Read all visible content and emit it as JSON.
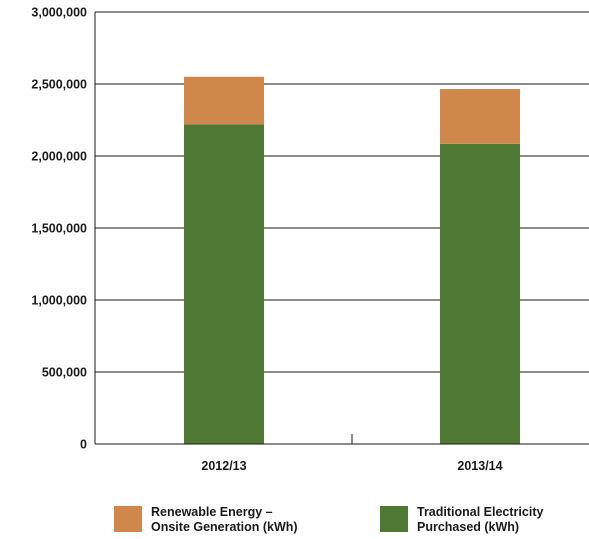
{
  "chart_data": {
    "type": "bar",
    "stacked": true,
    "categories": [
      "2012/13",
      "2013/14"
    ],
    "series": [
      {
        "name_lines": [
          "Traditional Electricity",
          "Purchased (kWh)"
        ],
        "color": "#4f7833",
        "values": [
          2220000,
          2085000
        ]
      },
      {
        "name_lines": [
          "Renewable Energy –",
          "Onsite Generation (kWh)"
        ],
        "color": "#d0874c",
        "values": [
          330000,
          380000
        ]
      }
    ],
    "ylim": [
      0,
      3000000
    ],
    "yticks": [
      0,
      500000,
      1000000,
      1500000,
      2000000,
      2500000,
      3000000
    ],
    "ytick_labels": [
      "0",
      "500,000",
      "1,000,000",
      "1,500,000",
      "2,000,000",
      "2,500,000",
      "3,000,000"
    ],
    "grid": true,
    "legend_position": "bottom",
    "legend_order": [
      1,
      0
    ]
  }
}
